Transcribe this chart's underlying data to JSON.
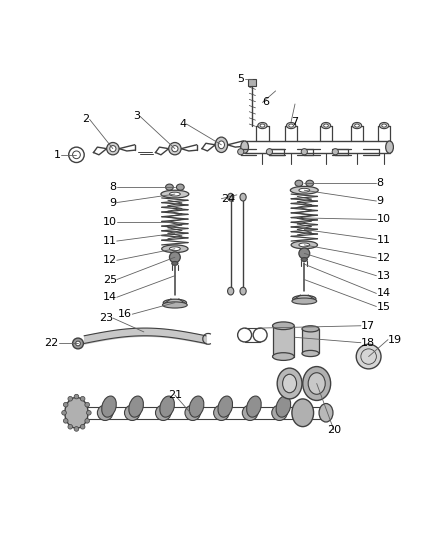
{
  "bg_color": "#ffffff",
  "fig_width": 4.38,
  "fig_height": 5.33,
  "dpi": 100,
  "line_color": "#404040",
  "leader_color": "#606060"
}
